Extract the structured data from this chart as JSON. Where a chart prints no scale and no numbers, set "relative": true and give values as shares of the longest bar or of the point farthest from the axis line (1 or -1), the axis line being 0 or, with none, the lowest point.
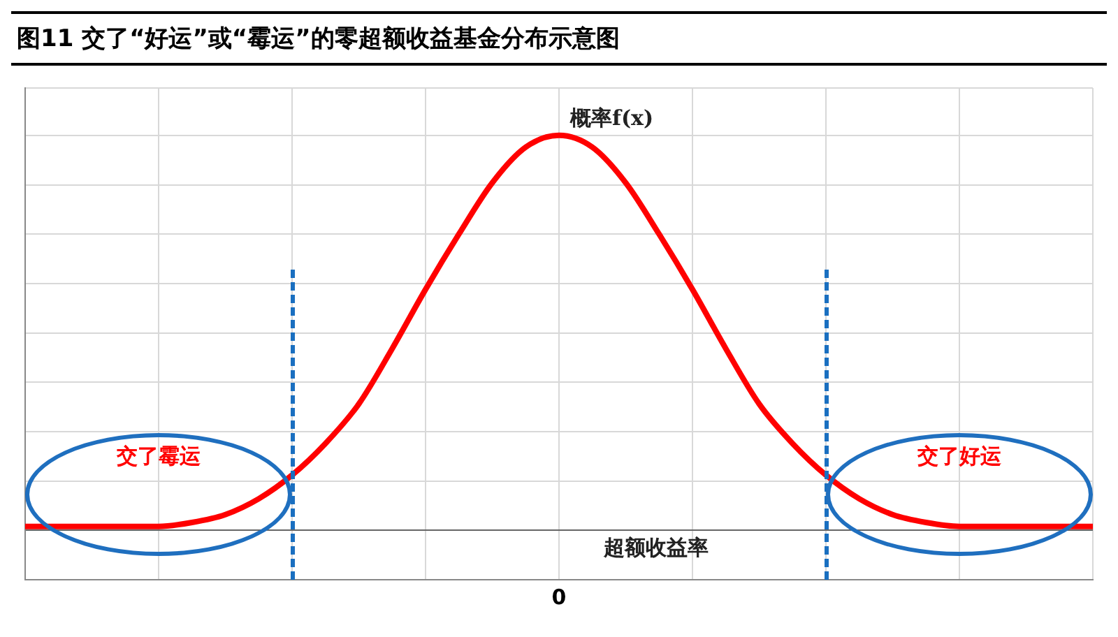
{
  "chart_data": {
    "type": "line",
    "title": "图11 交了“好运”或“霉运”的零超额收益基金分布示意图",
    "xlabel": "超额收益率",
    "ylabel": "概率f(x)",
    "relative": true,
    "categories": [
      null,
      null,
      null,
      null,
      null,
      null,
      null,
      null,
      null,
      null,
      null,
      null,
      null,
      null,
      null,
      null,
      null,
      null,
      null,
      null,
      null,
      null,
      null,
      null,
      null,
      null,
      null,
      null,
      null,
      null,
      null,
      null,
      null
    ],
    "series": [
      {
        "color": "#ff0000",
        "values": [
          0.01,
          0.01,
          0.01,
          0.01,
          0.01,
          0.02,
          0.04,
          0.08,
          0.14,
          0.22,
          0.32,
          0.46,
          0.61,
          0.75,
          0.88,
          0.97,
          1,
          0.97,
          0.88,
          0.75,
          0.61,
          0.46,
          0.32,
          0.22,
          0.14,
          0.08,
          0.04,
          0.02,
          0.01,
          0.01,
          0.01,
          0.01,
          0.01
        ]
      }
    ],
    "annotations": [
      "0",
      "交了霉运",
      "交了好运"
    ],
    "grid": true,
    "legend": false,
    "marker": "none",
    "line_style": "solid"
  }
}
